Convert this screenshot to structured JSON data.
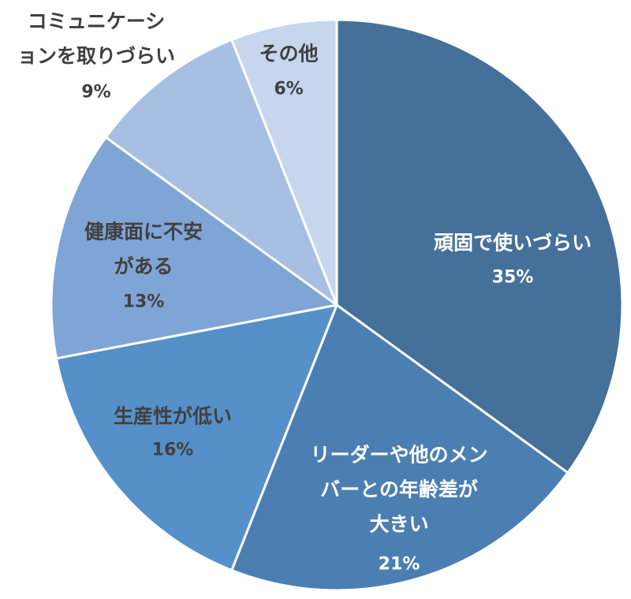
{
  "chart_data": {
    "type": "pie",
    "start_angle": "12 o'clock",
    "direction": "clockwise",
    "legend": "none",
    "slices": [
      {
        "label": "頑固で使いづらい",
        "value": 35,
        "percent_label": "35%",
        "color": "#44709a",
        "text_color": "#ffffff"
      },
      {
        "label": "リーダーや他のメンバーとの年齢差が大きい",
        "value": 21,
        "percent_label": "21%",
        "color": "#4b7fb2",
        "text_color": "#ffffff"
      },
      {
        "label": "生産性が低い",
        "value": 16,
        "percent_label": "16%",
        "color": "#5590c8",
        "text_color": "#404040"
      },
      {
        "label": "健康面に不安がある",
        "value": 13,
        "percent_label": "13%",
        "color": "#7fa5d6",
        "text_color": "#404040"
      },
      {
        "label": "コミュニケーションを取りづらい",
        "value": 9,
        "percent_label": "9%",
        "color": "#a6bfe2",
        "text_color": "#404040"
      },
      {
        "label": "その他",
        "value": 6,
        "percent_label": "6%",
        "color": "#c7d6ec",
        "text_color": "#404040"
      }
    ]
  }
}
